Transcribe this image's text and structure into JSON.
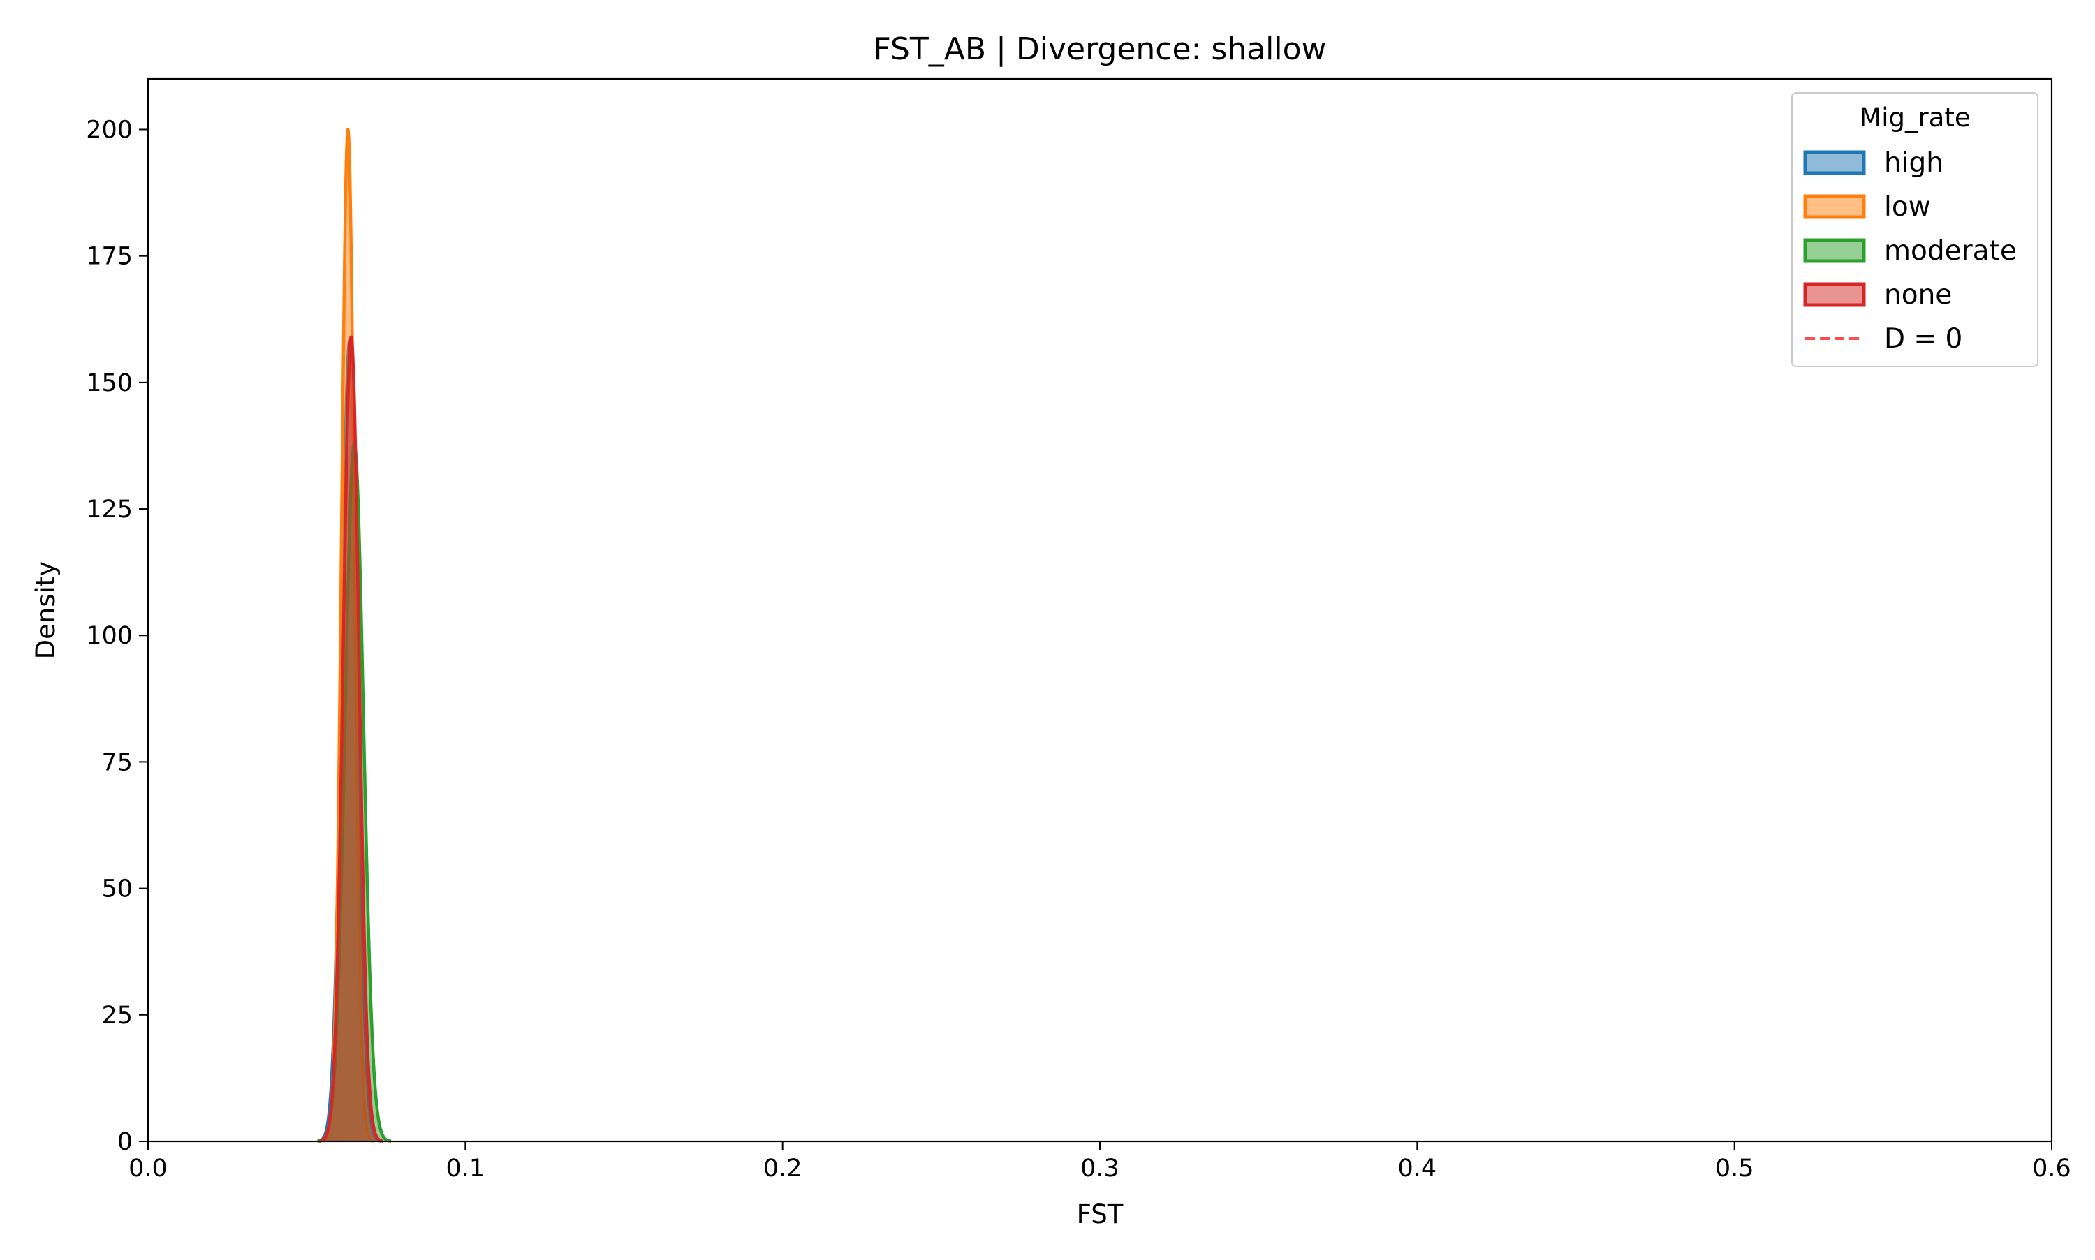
{
  "chart_data": {
    "type": "area",
    "title": "FST_AB | Divergence: shallow",
    "xlabel": "FST",
    "ylabel": "Density",
    "xlim": [
      0,
      0.6
    ],
    "ylim": [
      0,
      210
    ],
    "xticks": [
      0.0,
      0.1,
      0.2,
      0.3,
      0.4,
      0.5,
      0.6
    ],
    "xtick_labels": [
      "0.0",
      "0.1",
      "0.2",
      "0.3",
      "0.4",
      "0.5",
      "0.6"
    ],
    "yticks": [
      0,
      25,
      50,
      75,
      100,
      125,
      150,
      175,
      200
    ],
    "ytick_labels": [
      "0",
      "25",
      "50",
      "75",
      "100",
      "125",
      "150",
      "175",
      "200"
    ],
    "grid": false,
    "legend": {
      "title": "Mig_rate",
      "position": "top-right"
    },
    "series": [
      {
        "name": "high",
        "color": "#1f77b4",
        "peak_x": 0.0635,
        "peak_density": 158,
        "sd": 0.0025
      },
      {
        "name": "low",
        "color": "#ff7f0e",
        "peak_x": 0.063,
        "peak_density": 200,
        "sd": 0.002
      },
      {
        "name": "moderate",
        "color": "#2ca02c",
        "peak_x": 0.065,
        "peak_density": 138,
        "sd": 0.0029
      },
      {
        "name": "none",
        "color": "#d62728",
        "peak_x": 0.064,
        "peak_density": 159,
        "sd": 0.0025
      }
    ],
    "reference_line": {
      "label": "D = 0",
      "x": 0,
      "color": "#ff4d4d",
      "style": "dashed"
    }
  }
}
